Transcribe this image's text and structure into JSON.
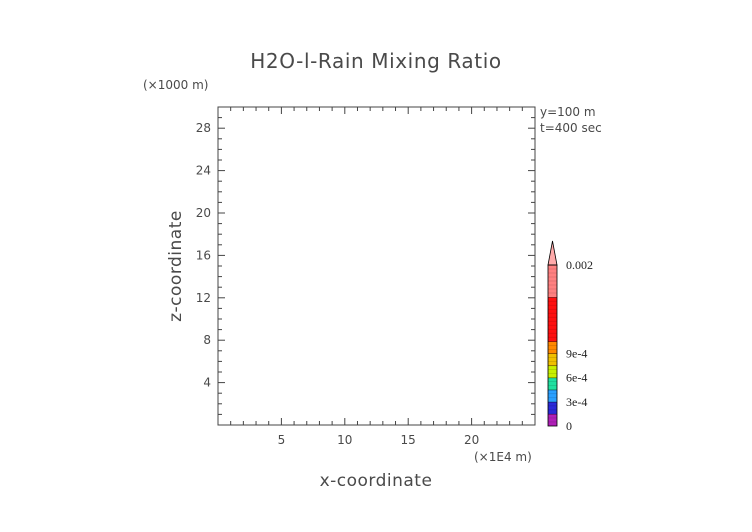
{
  "chart_data": {
    "type": "heatmap",
    "title": "H2O-l-Rain Mixing Ratio",
    "xlabel": "x-coordinate",
    "ylabel": "z-coordinate",
    "x_unit": "(×1E4 m)",
    "y_unit": "(×1000 m)",
    "annotations": [
      "y=100 m",
      "t=400 sec"
    ],
    "xlim": [
      0,
      25
    ],
    "ylim": [
      0,
      30
    ],
    "x_ticks": [
      5,
      10,
      15,
      20
    ],
    "y_ticks": [
      4,
      8,
      12,
      16,
      20,
      24,
      28
    ],
    "grid": false,
    "data": [],
    "colorbar": {
      "range": [
        0,
        0.002
      ],
      "tick_labels": [
        {
          "value": 0,
          "label": "0"
        },
        {
          "value": 0.0003,
          "label": "3e-4"
        },
        {
          "value": 0.0006,
          "label": "6e-4"
        },
        {
          "value": 0.0009,
          "label": "9e-4"
        },
        {
          "value": 0.002,
          "label": "0.002"
        }
      ],
      "segments": [
        {
          "from": 0.0,
          "to": 0.00015,
          "color": "#b020b8"
        },
        {
          "from": 0.00015,
          "to": 0.0003,
          "color": "#2a2ad8"
        },
        {
          "from": 0.0003,
          "to": 0.00045,
          "color": "#2aa0ff"
        },
        {
          "from": 0.00045,
          "to": 0.0006,
          "color": "#20e0a0"
        },
        {
          "from": 0.0006,
          "to": 0.00075,
          "color": "#c8f000"
        },
        {
          "from": 0.00075,
          "to": 0.0009,
          "color": "#f0c000"
        },
        {
          "from": 0.0009,
          "to": 0.00105,
          "color": "#ff8800"
        },
        {
          "from": 0.00105,
          "to": 0.0016,
          "color": "#ff1010"
        },
        {
          "from": 0.0016,
          "to": 0.002,
          "color": "#ff8080"
        },
        {
          "from": 0.002,
          "to": 0.0025,
          "color": "#ffaaaa"
        }
      ]
    }
  }
}
